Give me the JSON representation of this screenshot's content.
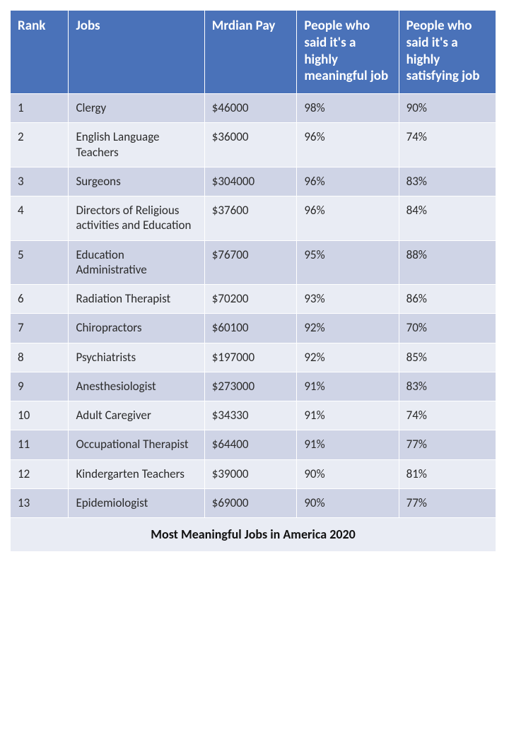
{
  "table": {
    "caption": "Most Meaningful Jobs in America 2020",
    "columns": [
      "Rank",
      "Jobs",
      "Mrdian Pay",
      "People who said it's a highly meaningful job",
      "People who said it's a highly satisfying job"
    ],
    "rows": [
      [
        "1",
        "Clergy",
        "$46000",
        "98%",
        "90%"
      ],
      [
        "2",
        "English Language Teachers",
        "$36000",
        "96%",
        "74%"
      ],
      [
        "3",
        "Surgeons",
        "$304000",
        "96%",
        "83%"
      ],
      [
        "4",
        "Directors of Religious activities and Education",
        "$37600",
        "96%",
        "84%"
      ],
      [
        "5",
        "Education Administrative",
        "$76700",
        "95%",
        "88%"
      ],
      [
        "6",
        "Radiation Therapist",
        "$70200",
        "93%",
        "86%"
      ],
      [
        "7",
        "Chiropractors",
        "$60100",
        "92%",
        "70%"
      ],
      [
        "8",
        "Psychiatrists",
        "$197000",
        "92%",
        "85%"
      ],
      [
        "9",
        "Anesthesiologist",
        "$273000",
        "91%",
        "83%"
      ],
      [
        "10",
        "Adult Caregiver",
        "$34330",
        "91%",
        "74%"
      ],
      [
        "11",
        "Occupational Therapist",
        "$64400",
        "91%",
        "77%"
      ],
      [
        "12",
        "Kindergarten Teachers",
        "$39000",
        "90%",
        "81%"
      ],
      [
        "13",
        "Epidemiologist",
        "$69000",
        "90%",
        "77%"
      ]
    ],
    "style": {
      "header_bg": "#4a72b9",
      "header_text": "#ffffff",
      "row_odd_bg": "#cfd4e6",
      "row_even_bg": "#e9ecf4",
      "border_color": "#ffffff",
      "body_text": "#2b2b2b",
      "header_fontsize": 19,
      "body_fontsize": 17,
      "caption_fontsize": 18,
      "col_widths_pct": [
        12,
        28,
        19,
        21,
        20
      ]
    }
  }
}
